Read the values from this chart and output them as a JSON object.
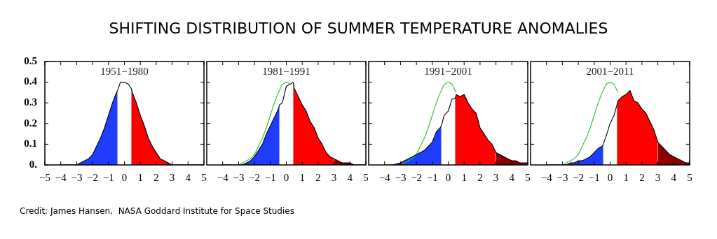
{
  "chart_data": [
    {
      "type": "area",
      "title": "SHIFTING DISTRIBUTION OF SUMMER TEMPERATURE ANOMALIES",
      "subtitle": "1951−1980",
      "annotations": [
        "Credit: James Hansen,  NASA Goddard Institute for Space Studies"
      ],
      "xlim": [
        -5,
        5
      ],
      "xticks": [
        -5,
        -4,
        -3,
        -2,
        -1,
        0,
        1,
        2,
        3,
        4,
        5
      ],
      "ylim": [
        0,
        0.5
      ],
      "yticks": [
        {
          "value": 0,
          "label": "0."
        },
        0.1,
        0.2,
        0.3,
        0.4,
        0.5
      ],
      "x": [
        -4,
        -3.5,
        -3,
        -2.75,
        -2.5,
        -2.25,
        -2,
        -1.75,
        -1.5,
        -1.25,
        -1,
        -0.75,
        -0.5,
        -0.43,
        -0.25,
        0,
        0.25,
        0.43,
        0.5,
        0.75,
        1,
        1.25,
        1.5,
        1.75,
        2,
        2.25,
        2.5,
        2.75,
        3,
        3.25,
        3.5,
        3.75,
        4,
        4.25,
        4.5,
        4.75,
        5
      ],
      "series": [
        {
          "type": "area",
          "color": "#1f3dff",
          "x": [
            -4,
            -3.5,
            -3,
            -2.75,
            -2.5,
            -2.25,
            -2,
            -1.75,
            -1.5,
            -1.25,
            -1,
            -0.75,
            -0.5,
            -0.43
          ],
          "values": [
            0,
            0,
            0,
            0.01,
            0.02,
            0.03,
            0.05,
            0.09,
            0.13,
            0.18,
            0.24,
            0.3,
            0.35,
            0.36
          ]
        },
        {
          "type": "area",
          "color": "#ff0000",
          "x": [
            0.43,
            0.5,
            0.75,
            1,
            1.25,
            1.5,
            1.75,
            2,
            2.25,
            2.5,
            2.75,
            3
          ],
          "values": [
            0.37,
            0.35,
            0.3,
            0.24,
            0.19,
            0.13,
            0.09,
            0.06,
            0.03,
            0.02,
            0.01,
            0
          ]
        },
        {
          "type": "line",
          "color": "#000000",
          "values": [
            0,
            0,
            0,
            0.01,
            0.02,
            0.03,
            0.05,
            0.09,
            0.13,
            0.18,
            0.24,
            0.3,
            0.35,
            0.36,
            0.4,
            0.4,
            0.39,
            0.37,
            0.35,
            0.3,
            0.24,
            0.19,
            0.13,
            0.09,
            0.06,
            0.03,
            0.02,
            0.01,
            0,
            0,
            0,
            0,
            0,
            0,
            0,
            0,
            0
          ]
        }
      ]
    },
    {
      "type": "area",
      "subtitle": "1981−1991",
      "tick_labels": "x",
      "xlim": [
        -5,
        5
      ],
      "xticks": [
        -4,
        -3,
        -2,
        -1,
        0,
        1,
        2,
        3,
        4,
        5
      ],
      "ylim": [
        0,
        0.5
      ],
      "yticks": [
        0.1,
        0.2,
        0.3,
        0.4
      ],
      "x": [
        -4,
        -3.5,
        -3,
        -2.75,
        -2.5,
        -2.25,
        -2,
        -1.75,
        -1.5,
        -1.25,
        -1,
        -0.75,
        -0.5,
        -0.43,
        -0.25,
        0,
        0.25,
        0.43,
        0.5,
        0.75,
        1,
        1.25,
        1.5,
        1.75,
        2,
        2.25,
        2.5,
        2.75,
        3,
        3.25,
        3.5,
        3.75,
        4,
        4.25,
        4.5,
        4.75,
        5
      ],
      "series": [
        {
          "type": "area",
          "color": "#1f3dff",
          "x": [
            -4,
            -3.5,
            -3,
            -2.75,
            -2.5,
            -2.25,
            -2,
            -1.75,
            -1.5,
            -1.25,
            -1,
            -0.75,
            -0.5,
            -0.43
          ],
          "values": [
            0,
            0,
            0,
            0,
            0.01,
            0.02,
            0.04,
            0.07,
            0.1,
            0.15,
            0.19,
            0.23,
            0.27,
            0.29
          ]
        },
        {
          "type": "area",
          "color": "#ff0000",
          "x": [
            0.43,
            0.5,
            0.75,
            1,
            1.25,
            1.5,
            1.75,
            2,
            2.25,
            2.5,
            2.75,
            3
          ],
          "values": [
            0.4,
            0.37,
            0.33,
            0.29,
            0.26,
            0.21,
            0.18,
            0.13,
            0.1,
            0.06,
            0.04,
            0.03
          ]
        },
        {
          "type": "area",
          "color": "#8b0000",
          "x": [
            3,
            3.25,
            3.5,
            3.75,
            4,
            4.25,
            4.5,
            4.75,
            5
          ],
          "values": [
            0.03,
            0.02,
            0.01,
            0.01,
            0.01,
            0,
            0,
            0,
            0
          ]
        },
        {
          "type": "line",
          "color": "#000000",
          "values": [
            0,
            0,
            0,
            0,
            0.01,
            0.02,
            0.04,
            0.07,
            0.1,
            0.15,
            0.19,
            0.23,
            0.27,
            0.29,
            0.3,
            0.38,
            0.39,
            0.4,
            0.37,
            0.33,
            0.29,
            0.26,
            0.21,
            0.18,
            0.13,
            0.1,
            0.06,
            0.04,
            0.03,
            0.02,
            0.01,
            0.01,
            0.01,
            0,
            0,
            0,
            0
          ]
        },
        {
          "type": "line",
          "color": "#33bb33",
          "x": [
            -3,
            -2.75,
            -2.5,
            -2.25,
            -2,
            -1.75,
            -1.5,
            -1.25,
            -1,
            -0.75,
            -0.5,
            -0.43,
            -0.25,
            0,
            0.25
          ],
          "values": [
            0,
            0.01,
            0.02,
            0.03,
            0.05,
            0.09,
            0.13,
            0.18,
            0.24,
            0.3,
            0.35,
            0.36,
            0.39,
            0.4,
            0.39
          ]
        }
      ]
    },
    {
      "type": "area",
      "subtitle": "1991−2001",
      "tick_labels": "x",
      "xlim": [
        -5,
        5
      ],
      "xticks": [
        -4,
        -3,
        -2,
        -1,
        0,
        1,
        2,
        3,
        4,
        5
      ],
      "ylim": [
        0,
        0.5
      ],
      "yticks": [
        0.1,
        0.2,
        0.3,
        0.4
      ],
      "x": [
        -4,
        -3.5,
        -3,
        -2.75,
        -2.5,
        -2.25,
        -2,
        -1.75,
        -1.5,
        -1.25,
        -1,
        -0.75,
        -0.5,
        -0.43,
        -0.25,
        0,
        0.25,
        0.43,
        0.5,
        0.75,
        1,
        1.25,
        1.5,
        1.75,
        2,
        2.25,
        2.5,
        2.75,
        3,
        3.25,
        3.5,
        3.75,
        4,
        4.25,
        4.5,
        4.75,
        5
      ],
      "series": [
        {
          "type": "area",
          "color": "#1f3dff",
          "x": [
            -4,
            -3.5,
            -3,
            -2.75,
            -2.5,
            -2.25,
            -2,
            -1.75,
            -1.5,
            -1.25,
            -1,
            -0.75,
            -0.5,
            -0.43
          ],
          "values": [
            0,
            0,
            0.01,
            0.02,
            0.03,
            0.04,
            0.05,
            0.06,
            0.07,
            0.09,
            0.11,
            0.16,
            0.18,
            0.19
          ]
        },
        {
          "type": "area",
          "color": "#ff0000",
          "x": [
            0.43,
            0.5,
            0.75,
            1,
            1.25,
            1.5,
            1.75,
            2,
            2.25,
            2.5,
            2.75,
            3
          ],
          "values": [
            0.32,
            0.34,
            0.33,
            0.34,
            0.3,
            0.27,
            0.25,
            0.18,
            0.15,
            0.12,
            0.1,
            0.06
          ]
        },
        {
          "type": "area",
          "color": "#8b0000",
          "x": [
            3,
            3.25,
            3.5,
            3.75,
            4,
            4.25,
            4.5,
            4.75,
            5
          ],
          "values": [
            0.06,
            0.05,
            0.04,
            0.03,
            0.02,
            0.02,
            0.01,
            0.01,
            0.01
          ]
        },
        {
          "type": "line",
          "color": "#33bb33",
          "x": [
            -3,
            -2.75,
            -2.5,
            -2.25,
            -2,
            -1.75,
            -1.5,
            -1.25,
            -1,
            -0.75,
            -0.5,
            -0.43,
            -0.25,
            0,
            0.25,
            0.43,
            0.5
          ],
          "values": [
            0,
            0.01,
            0.02,
            0.03,
            0.05,
            0.09,
            0.13,
            0.18,
            0.24,
            0.3,
            0.35,
            0.36,
            0.39,
            0.4,
            0.39,
            0.36,
            0.35
          ]
        },
        {
          "type": "line",
          "color": "#000000",
          "values": [
            0,
            0,
            0.01,
            0.02,
            0.03,
            0.04,
            0.05,
            0.06,
            0.07,
            0.09,
            0.11,
            0.16,
            0.18,
            0.19,
            0.24,
            0.26,
            0.32,
            0.32,
            0.34,
            0.33,
            0.34,
            0.3,
            0.27,
            0.25,
            0.18,
            0.15,
            0.12,
            0.1,
            0.06,
            0.05,
            0.04,
            0.03,
            0.02,
            0.02,
            0.01,
            0.01,
            0.01
          ]
        }
      ]
    },
    {
      "type": "area",
      "subtitle": "2001−2011",
      "tick_labels": "x",
      "xlim": [
        -5,
        5
      ],
      "xticks": [
        -4,
        -3,
        -2,
        -1,
        0,
        1,
        2,
        3,
        4,
        5
      ],
      "ylim": [
        0,
        0.5
      ],
      "yticks": [
        0.1,
        0.2,
        0.3,
        0.4
      ],
      "x": [
        -4,
        -3.5,
        -3,
        -2.75,
        -2.5,
        -2.25,
        -2,
        -1.75,
        -1.5,
        -1.25,
        -1,
        -0.75,
        -0.5,
        -0.43,
        -0.25,
        0,
        0.25,
        0.43,
        0.5,
        0.75,
        1,
        1.25,
        1.5,
        1.75,
        2,
        2.25,
        2.5,
        2.75,
        3,
        3.25,
        3.5,
        3.75,
        4,
        4.25,
        4.5,
        4.75,
        5
      ],
      "series": [
        {
          "type": "area",
          "color": "#1f3dff",
          "x": [
            -4,
            -3.5,
            -3,
            -2.75,
            -2.5,
            -2.25,
            -2,
            -1.75,
            -1.5,
            -1.25,
            -1,
            -0.75,
            -0.5,
            -0.43
          ],
          "values": [
            0,
            0,
            0,
            0,
            0.01,
            0.01,
            0.02,
            0.02,
            0.03,
            0.04,
            0.06,
            0.08,
            0.09,
            0.1
          ]
        },
        {
          "type": "area",
          "color": "#ff0000",
          "x": [
            0.43,
            0.5,
            0.75,
            1,
            1.25,
            1.5,
            1.75,
            2,
            2.25,
            2.5,
            2.75,
            3
          ],
          "values": [
            0.29,
            0.31,
            0.33,
            0.34,
            0.36,
            0.31,
            0.3,
            0.27,
            0.25,
            0.21,
            0.17,
            0.11
          ]
        },
        {
          "type": "area",
          "color": "#8b0000",
          "x": [
            3,
            3.25,
            3.5,
            3.75,
            4,
            4.25,
            4.5,
            4.75,
            5
          ],
          "values": [
            0.11,
            0.09,
            0.07,
            0.05,
            0.04,
            0.03,
            0.02,
            0.01,
            0.01
          ]
        },
        {
          "type": "line",
          "color": "#33bb33",
          "x": [
            -3,
            -2.75,
            -2.5,
            -2.25,
            -2,
            -1.75,
            -1.5,
            -1.25,
            -1,
            -0.75,
            -0.5,
            -0.43,
            -0.25,
            0,
            0.25,
            0.43,
            0.5
          ],
          "values": [
            0,
            0.01,
            0.02,
            0.03,
            0.05,
            0.09,
            0.13,
            0.18,
            0.24,
            0.3,
            0.35,
            0.36,
            0.39,
            0.4,
            0.39,
            0.36,
            0.35
          ]
        },
        {
          "type": "line",
          "color": "#000000",
          "values": [
            0,
            0,
            0,
            0,
            0.01,
            0.01,
            0.02,
            0.02,
            0.03,
            0.04,
            0.06,
            0.08,
            0.09,
            0.1,
            0.14,
            0.2,
            0.24,
            0.29,
            0.31,
            0.33,
            0.34,
            0.36,
            0.31,
            0.3,
            0.27,
            0.25,
            0.21,
            0.17,
            0.11,
            0.09,
            0.07,
            0.05,
            0.04,
            0.03,
            0.02,
            0.01,
            0.01
          ]
        }
      ]
    }
  ]
}
